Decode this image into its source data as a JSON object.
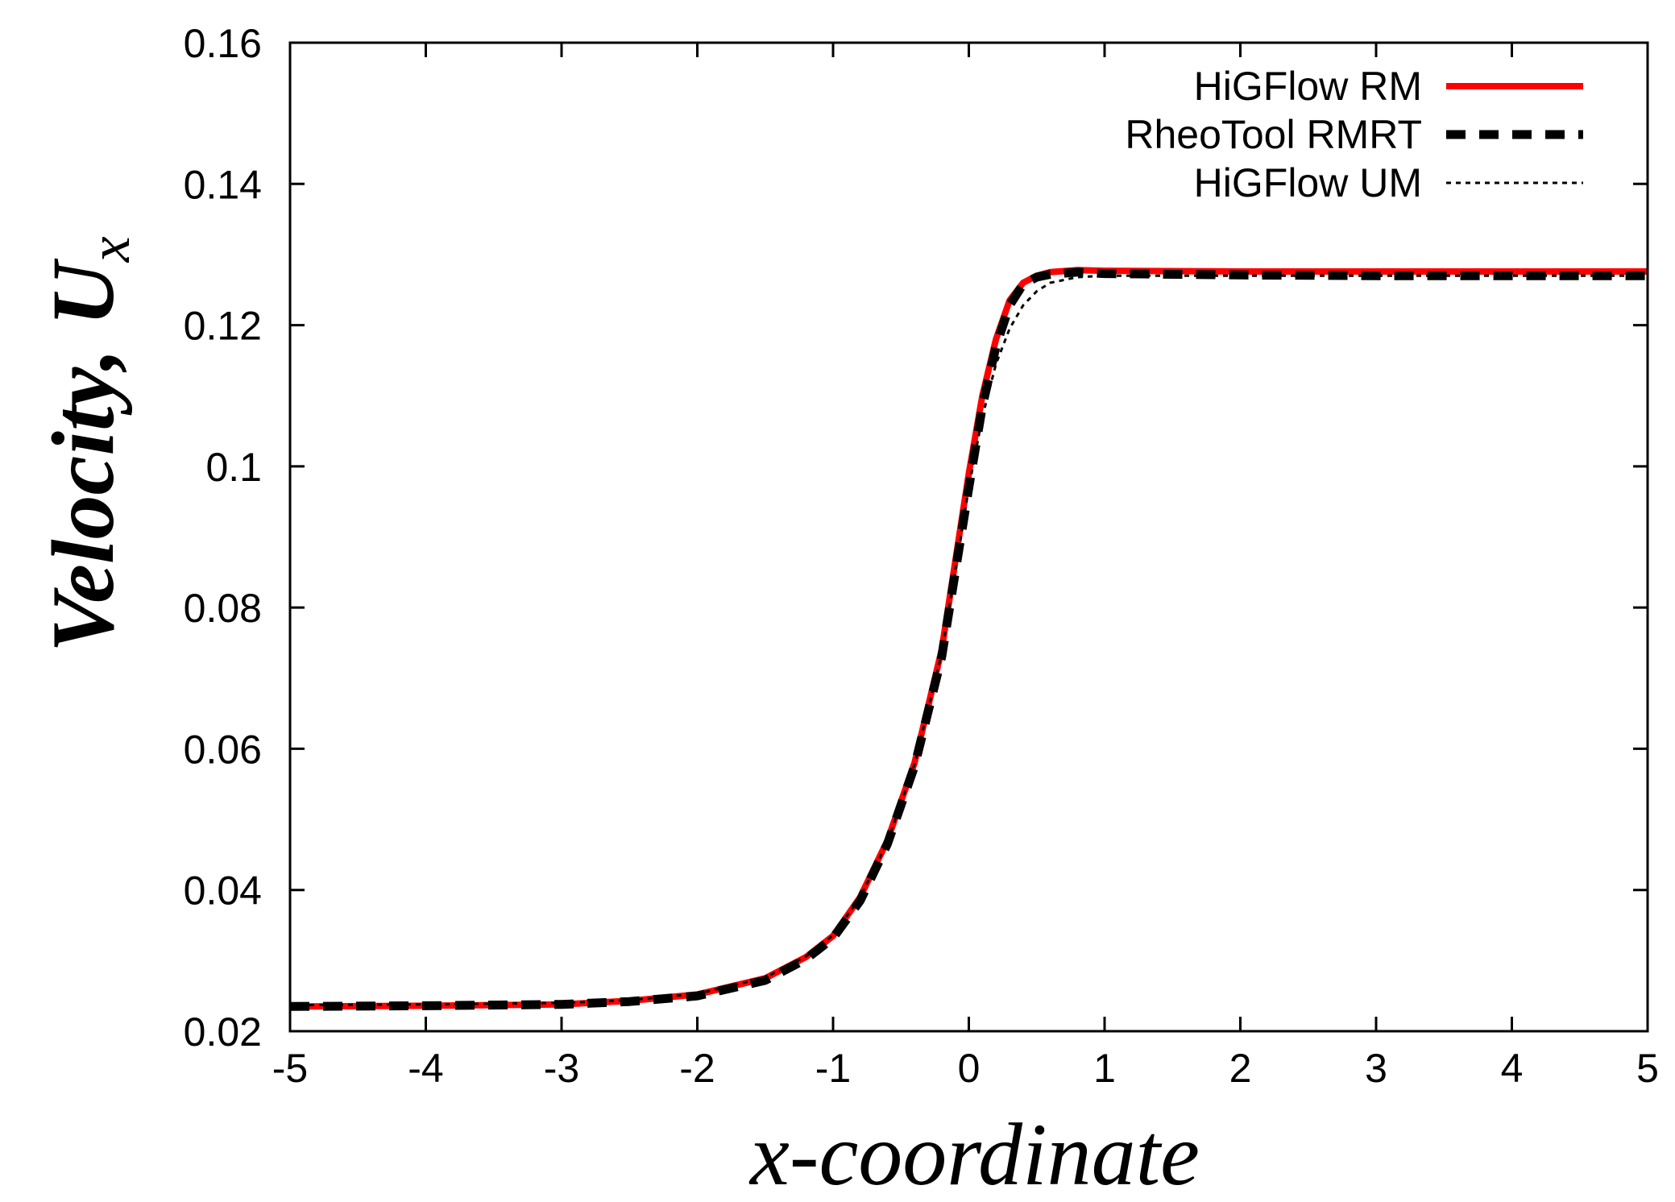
{
  "chart_data": {
    "type": "line",
    "xlabel": "x-coordinate",
    "ylabel_main": "Velocity, U",
    "ylabel_sub": "x",
    "xlim": [
      -5,
      5
    ],
    "ylim": [
      0.02,
      0.16
    ],
    "grid": false,
    "legend_position": "top-right",
    "x_ticks": [
      -5,
      -4,
      -3,
      -2,
      -1,
      0,
      1,
      2,
      3,
      4,
      5
    ],
    "x_tick_labels": [
      "-5",
      "-4",
      "-3",
      "-2",
      "-1",
      "0",
      "1",
      "2",
      "3",
      "4",
      "5"
    ],
    "y_ticks": [
      0.02,
      0.04,
      0.06,
      0.08,
      0.1,
      0.12,
      0.14,
      0.16
    ],
    "y_tick_labels": [
      "0.02",
      "0.04",
      "0.06",
      "0.08",
      "0.1",
      "0.12",
      "0.14",
      "0.16"
    ],
    "series": [
      {
        "name": "HiGFlow RM",
        "color": "#ff0000",
        "style": "solid",
        "x": [
          -5,
          -4,
          -3,
          -2.5,
          -2,
          -1.5,
          -1.2,
          -1,
          -0.8,
          -0.6,
          -0.4,
          -0.2,
          0,
          0.1,
          0.2,
          0.3,
          0.4,
          0.5,
          0.6,
          0.8,
          1,
          2,
          3,
          4,
          5
        ],
        "y": [
          0.0235,
          0.0236,
          0.0238,
          0.0243,
          0.0252,
          0.0275,
          0.0305,
          0.0335,
          0.039,
          0.047,
          0.058,
          0.074,
          0.099,
          0.11,
          0.118,
          0.1235,
          0.126,
          0.127,
          0.1275,
          0.1278,
          0.1277,
          0.1276,
          0.1276,
          0.1276,
          0.1276
        ]
      },
      {
        "name": "RheoTool RMRT",
        "color": "#000000",
        "style": "dashed",
        "x": [
          -5,
          -4,
          -3,
          -2.5,
          -2,
          -1.5,
          -1.2,
          -1,
          -0.8,
          -0.6,
          -0.4,
          -0.2,
          0,
          0.1,
          0.2,
          0.3,
          0.4,
          0.5,
          0.6,
          0.8,
          1,
          2,
          3,
          4,
          5
        ],
        "y": [
          0.0235,
          0.0236,
          0.0238,
          0.0242,
          0.025,
          0.0272,
          0.0302,
          0.0332,
          0.0385,
          0.0465,
          0.0575,
          0.073,
          0.097,
          0.1085,
          0.117,
          0.1228,
          0.1258,
          0.1268,
          0.1272,
          0.1275,
          0.1273,
          0.1271,
          0.127,
          0.127,
          0.127
        ]
      },
      {
        "name": "HiGFlow UM",
        "color": "#000000",
        "style": "dotted",
        "x": [
          -5,
          -4,
          -3,
          -2.5,
          -2,
          -1.5,
          -1.2,
          -1,
          -0.8,
          -0.6,
          -0.4,
          -0.2,
          0,
          0.1,
          0.2,
          0.3,
          0.4,
          0.5,
          0.6,
          0.8,
          1,
          2,
          3,
          4,
          5
        ],
        "y": [
          0.0237,
          0.0238,
          0.024,
          0.0244,
          0.0253,
          0.0276,
          0.0306,
          0.0336,
          0.039,
          0.0468,
          0.0578,
          0.0735,
          0.097,
          0.107,
          0.1145,
          0.1195,
          0.1228,
          0.1248,
          0.126,
          0.1268,
          0.127,
          0.127,
          0.127,
          0.127,
          0.127
        ]
      }
    ]
  }
}
